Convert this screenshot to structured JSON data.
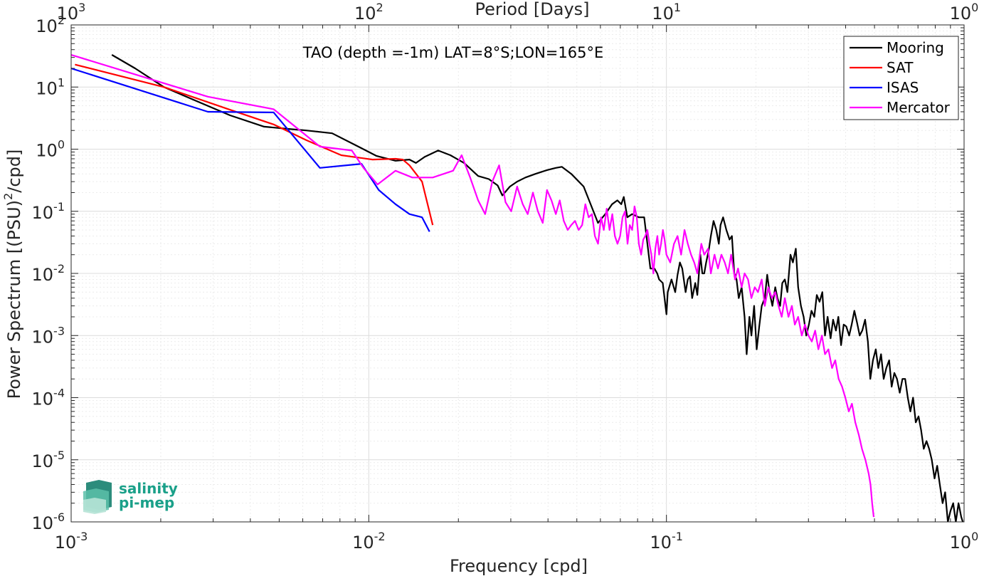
{
  "chart_data": {
    "type": "line",
    "title": "TAO (depth =-1m) LAT=8°S;LON=165°E",
    "xlabel": "Frequency [cpd]",
    "ylabel": "Power Spectrum [(PSU)",
    "ylabel_sup": "2",
    "ylabel_tail": "/cpd]",
    "top_axis_label": "Period [Days]",
    "x_scale": "log",
    "y_scale": "log",
    "xlim": [
      0.001,
      1
    ],
    "ylim": [
      1e-06,
      100
    ],
    "grid": true,
    "legend_position": "top-right",
    "x_ticks": [
      {
        "base": "10",
        "exp": "-3",
        "value": 0.001
      },
      {
        "base": "10",
        "exp": "-2",
        "value": 0.01
      },
      {
        "base": "10",
        "exp": "-1",
        "value": 0.1
      },
      {
        "base": "10",
        "exp": "0",
        "value": 1
      }
    ],
    "top_ticks": [
      {
        "base": "10",
        "exp": "3",
        "value": 0.001
      },
      {
        "base": "10",
        "exp": "2",
        "value": 0.01
      },
      {
        "base": "10",
        "exp": "1",
        "value": 0.1
      },
      {
        "base": "10",
        "exp": "0",
        "value": 1
      }
    ],
    "y_ticks": [
      {
        "base": "10",
        "exp": "2",
        "value": 100
      },
      {
        "base": "10",
        "exp": "1",
        "value": 10
      },
      {
        "base": "10",
        "exp": "0",
        "value": 1
      },
      {
        "base": "10",
        "exp": "-1",
        "value": 0.1
      },
      {
        "base": "10",
        "exp": "-2",
        "value": 0.01
      },
      {
        "base": "10",
        "exp": "-3",
        "value": 0.001
      },
      {
        "base": "10",
        "exp": "-4",
        "value": 0.0001
      },
      {
        "base": "10",
        "exp": "-5",
        "value": 1e-05
      },
      {
        "base": "10",
        "exp": "-6",
        "value": 1e-06
      }
    ],
    "series": [
      {
        "name": "Mooring",
        "color": "#000000",
        "x": [
          0.00137,
          0.00164,
          0.00205,
          0.00274,
          0.00342,
          0.00445,
          0.00547,
          0.00616,
          0.00753,
          0.0089,
          0.0106,
          0.0123,
          0.0137,
          0.0144,
          0.0154,
          0.0171,
          0.0188,
          0.0209,
          0.0233,
          0.0253,
          0.0271,
          0.0281,
          0.0298,
          0.0315,
          0.0336,
          0.0363,
          0.0397,
          0.0425,
          0.0445,
          0.0479,
          0.0527,
          0.0589,
          0.0623,
          0.0657,
          0.0684,
          0.0705,
          0.0719,
          0.0739,
          0.0767,
          0.0808,
          0.0842,
          0.0863,
          0.0883,
          0.0911,
          0.0931,
          0.0945,
          0.0972,
          0.1,
          0.101,
          0.104,
          0.107,
          0.109,
          0.111,
          0.113,
          0.116,
          0.118,
          0.12,
          0.122,
          0.125,
          0.127,
          0.13,
          0.132,
          0.134,
          0.136,
          0.139,
          0.141,
          0.144,
          0.147,
          0.15,
          0.152,
          0.155,
          0.159,
          0.163,
          0.166,
          0.169,
          0.172,
          0.175,
          0.179,
          0.183,
          0.186,
          0.19,
          0.193,
          0.197,
          0.201,
          0.205,
          0.209,
          0.214,
          0.218,
          0.222,
          0.227,
          0.232,
          0.236,
          0.241,
          0.245,
          0.25,
          0.255,
          0.261,
          0.266,
          0.272,
          0.277,
          0.283,
          0.289,
          0.295,
          0.301,
          0.307,
          0.314,
          0.32,
          0.327,
          0.334,
          0.341,
          0.348,
          0.356,
          0.363,
          0.371,
          0.378,
          0.386,
          0.394,
          0.402,
          0.411,
          0.419,
          0.428,
          0.437,
          0.446,
          0.455,
          0.465,
          0.475,
          0.484,
          0.494,
          0.505,
          0.515,
          0.526,
          0.537,
          0.548,
          0.56,
          0.571,
          0.583,
          0.595,
          0.608,
          0.621,
          0.634,
          0.647,
          0.66,
          0.674,
          0.688,
          0.703,
          0.717,
          0.732,
          0.748,
          0.763,
          0.779,
          0.796,
          0.812,
          0.829,
          0.847,
          0.864,
          0.882,
          0.9,
          0.919,
          0.938,
          0.958,
          0.978,
          0.99
        ],
        "y": [
          33,
          20,
          10,
          5.5,
          3.5,
          2.3,
          2.1,
          2,
          1.8,
          1.2,
          0.78,
          0.65,
          0.68,
          0.6,
          0.75,
          0.95,
          0.8,
          0.6,
          0.37,
          0.33,
          0.26,
          0.18,
          0.25,
          0.3,
          0.35,
          0.4,
          0.46,
          0.5,
          0.52,
          0.4,
          0.25,
          0.065,
          0.09,
          0.13,
          0.15,
          0.13,
          0.17,
          0.08,
          0.09,
          0.08,
          0.08,
          0.03,
          0.012,
          0.012,
          0.01,
          0.008,
          0.007,
          0.0022,
          0.005,
          0.008,
          0.005,
          0.0095,
          0.015,
          0.012,
          0.005,
          0.008,
          0.009,
          0.004,
          0.007,
          0.0045,
          0.02,
          0.01,
          0.01,
          0.015,
          0.025,
          0.04,
          0.07,
          0.05,
          0.03,
          0.06,
          0.08,
          0.05,
          0.035,
          0.04,
          0.01,
          0.008,
          0.004,
          0.006,
          0.002,
          0.0005,
          0.002,
          0.001,
          0.003,
          0.0006,
          0.0014,
          0.003,
          0.004,
          0.0095,
          0.005,
          0.003,
          0.006,
          0.004,
          0.003,
          0.007,
          0.008,
          0.005,
          0.02,
          0.015,
          0.025,
          0.006,
          0.003,
          0.002,
          0.001,
          0.0015,
          0.0025,
          0.002,
          0.0045,
          0.0035,
          0.005,
          0.001,
          0.002,
          0.0009,
          0.0018,
          0.0012,
          0.002,
          0.0007,
          0.0015,
          0.0014,
          0.001,
          0.0015,
          0.0025,
          0.0016,
          0.001,
          0.0012,
          0.0018,
          0.0008,
          0.0002,
          0.0004,
          0.0006,
          0.0003,
          0.0005,
          0.0002,
          0.0003,
          0.0004,
          0.00015,
          0.00025,
          0.0002,
          0.00012,
          0.0002,
          0.0002,
          0.0001,
          6e-05,
          0.0001,
          4e-05,
          5e-05,
          3e-05,
          1.5e-05,
          2e-05,
          1.5e-05,
          1e-05,
          5e-06,
          8e-06,
          4e-06,
          2e-06,
          3e-06,
          1e-06,
          1.5e-06,
          2e-06,
          1e-06,
          2e-06,
          1.2e-06,
          1e-06
        ]
      },
      {
        "name": "SAT",
        "color": "#ff0000",
        "x": [
          0.00103,
          0.00205,
          0.00342,
          0.00479,
          0.00616,
          0.00808,
          0.0103,
          0.0123,
          0.013,
          0.0137,
          0.0151,
          0.0164
        ],
        "y": [
          23,
          10,
          4.3,
          2.5,
          1.4,
          0.8,
          0.68,
          0.7,
          0.68,
          0.55,
          0.3,
          0.06
        ]
      },
      {
        "name": "ISAS",
        "color": "#0000ff",
        "x": [
          0.001,
          0.00288,
          0.00479,
          0.00685,
          0.00945,
          0.0108,
          0.0123,
          0.0137,
          0.0151,
          0.016
        ],
        "y": [
          20,
          4,
          3.9,
          0.5,
          0.58,
          0.22,
          0.13,
          0.09,
          0.08,
          0.047
        ]
      },
      {
        "name": "Mercator",
        "color": "#ff00ff",
        "x": [
          0.001,
          0.00288,
          0.00479,
          0.00685,
          0.00877,
          0.0096,
          0.0107,
          0.0123,
          0.014,
          0.0164,
          0.0192,
          0.0205,
          0.0219,
          0.0233,
          0.0246,
          0.026,
          0.0274,
          0.0288,
          0.0301,
          0.0315,
          0.0329,
          0.0342,
          0.0356,
          0.037,
          0.0384,
          0.0397,
          0.0411,
          0.0425,
          0.0438,
          0.0452,
          0.0466,
          0.0479,
          0.0493,
          0.0507,
          0.0521,
          0.0534,
          0.0548,
          0.0562,
          0.0575,
          0.0589,
          0.0603,
          0.0616,
          0.063,
          0.0644,
          0.0658,
          0.0671,
          0.0685,
          0.0699,
          0.0712,
          0.0726,
          0.074,
          0.0753,
          0.0767,
          0.0781,
          0.0795,
          0.0808,
          0.0822,
          0.0836,
          0.0849,
          0.0863,
          0.0877,
          0.089,
          0.0904,
          0.0918,
          0.0932,
          0.0945,
          0.0959,
          0.0973,
          0.0986,
          0.1,
          0.103,
          0.106,
          0.109,
          0.112,
          0.115,
          0.118,
          0.121,
          0.124,
          0.127,
          0.131,
          0.134,
          0.138,
          0.141,
          0.145,
          0.149,
          0.153,
          0.157,
          0.161,
          0.165,
          0.17,
          0.174,
          0.179,
          0.183,
          0.188,
          0.193,
          0.198,
          0.203,
          0.209,
          0.214,
          0.22,
          0.226,
          0.232,
          0.238,
          0.244,
          0.25,
          0.257,
          0.264,
          0.27,
          0.277,
          0.285,
          0.292,
          0.3,
          0.308,
          0.316,
          0.324,
          0.333,
          0.341,
          0.35,
          0.36,
          0.369,
          0.379,
          0.389,
          0.399,
          0.41,
          0.42,
          0.431,
          0.443,
          0.454,
          0.466,
          0.478,
          0.485,
          0.491,
          0.497
        ],
        "y": [
          33,
          7,
          4.4,
          1.1,
          0.95,
          0.5,
          0.27,
          0.45,
          0.35,
          0.35,
          0.45,
          0.8,
          0.35,
          0.15,
          0.09,
          0.3,
          0.55,
          0.14,
          0.1,
          0.25,
          0.13,
          0.09,
          0.2,
          0.1,
          0.065,
          0.22,
          0.15,
          0.09,
          0.15,
          0.07,
          0.05,
          0.06,
          0.07,
          0.05,
          0.06,
          0.13,
          0.08,
          0.09,
          0.04,
          0.03,
          0.08,
          0.05,
          0.11,
          0.05,
          0.09,
          0.04,
          0.03,
          0.04,
          0.08,
          0.1,
          0.03,
          0.06,
          0.05,
          0.12,
          0.08,
          0.03,
          0.02,
          0.035,
          0.04,
          0.05,
          0.03,
          0.02,
          0.01,
          0.025,
          0.04,
          0.02,
          0.03,
          0.05,
          0.035,
          0.02,
          0.015,
          0.03,
          0.04,
          0.02,
          0.05,
          0.03,
          0.02,
          0.015,
          0.01,
          0.03,
          0.02,
          0.025,
          0.01,
          0.02,
          0.012,
          0.02,
          0.015,
          0.01,
          0.02,
          0.008,
          0.012,
          0.006,
          0.01,
          0.008,
          0.004,
          0.006,
          0.005,
          0.008,
          0.003,
          0.006,
          0.004,
          0.005,
          0.003,
          0.002,
          0.004,
          0.002,
          0.003,
          0.0015,
          0.002,
          0.001,
          0.0015,
          0.001,
          0.0008,
          0.0012,
          0.0006,
          0.001,
          0.0005,
          0.0006,
          0.0003,
          0.0004,
          0.0002,
          0.00015,
          0.0001,
          6e-05,
          8e-05,
          4e-05,
          2.5e-05,
          1.5e-05,
          1e-05,
          6e-06,
          4e-06,
          2e-06,
          1.2e-06
        ]
      }
    ]
  },
  "logo": {
    "line1": "salinity",
    "line2": "pi-mep",
    "color": "#1aa089"
  }
}
